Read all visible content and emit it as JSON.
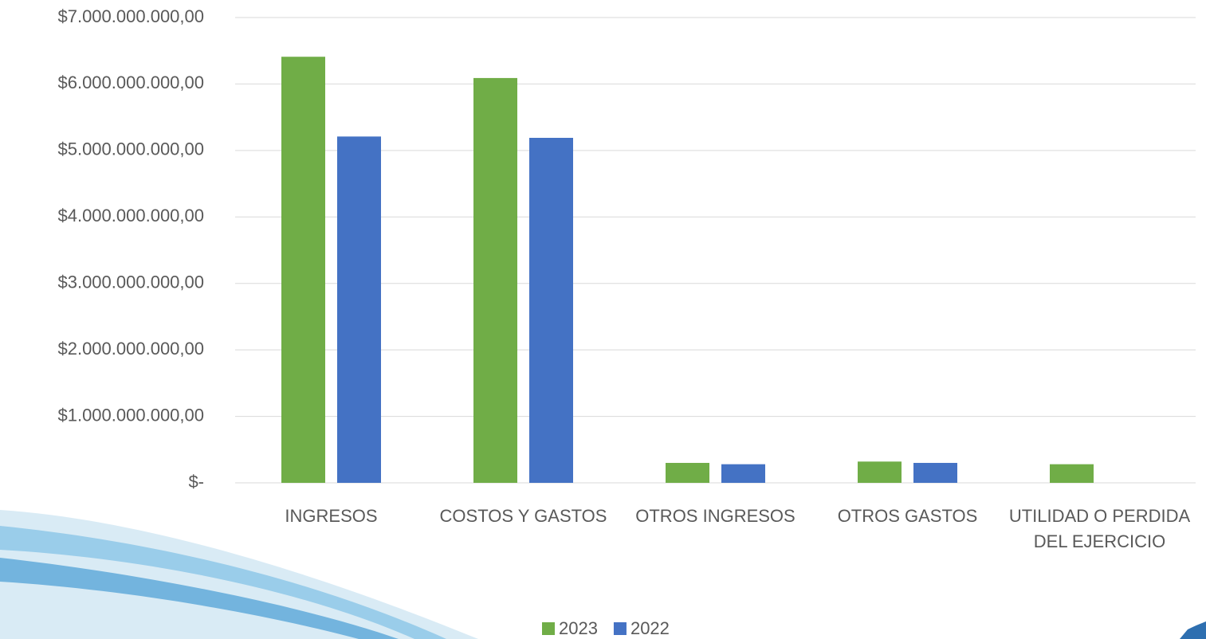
{
  "chart_data": {
    "type": "bar",
    "categories": [
      "INGRESOS",
      "COSTOS Y GASTOS",
      "OTROS INGRESOS",
      "OTROS GASTOS",
      "UTILIDAD O PERDIDA DEL EJERCICIO"
    ],
    "series": [
      {
        "name": "2023",
        "color": "#70ad47",
        "values": [
          6410000000,
          6090000000,
          300000000,
          320000000,
          280000000
        ]
      },
      {
        "name": "2022",
        "color": "#4472c4",
        "values": [
          5210000000,
          5190000000,
          280000000,
          300000000,
          0
        ]
      }
    ],
    "ylim": [
      0,
      7000000000
    ],
    "yticks": [
      {
        "value": 0,
        "label": "$-"
      },
      {
        "value": 1000000000,
        "label": "$1.000.000.000,00"
      },
      {
        "value": 2000000000,
        "label": "$2.000.000.000,00"
      },
      {
        "value": 3000000000,
        "label": "$3.000.000.000,00"
      },
      {
        "value": 4000000000,
        "label": "$4.000.000.000,00"
      },
      {
        "value": 5000000000,
        "label": "$5.000.000.000,00"
      },
      {
        "value": 6000000000,
        "label": "$6.000.000.000,00"
      },
      {
        "value": 7000000000,
        "label": "$7.000.000.000,00"
      }
    ],
    "grid": true,
    "legend": "bottom"
  }
}
